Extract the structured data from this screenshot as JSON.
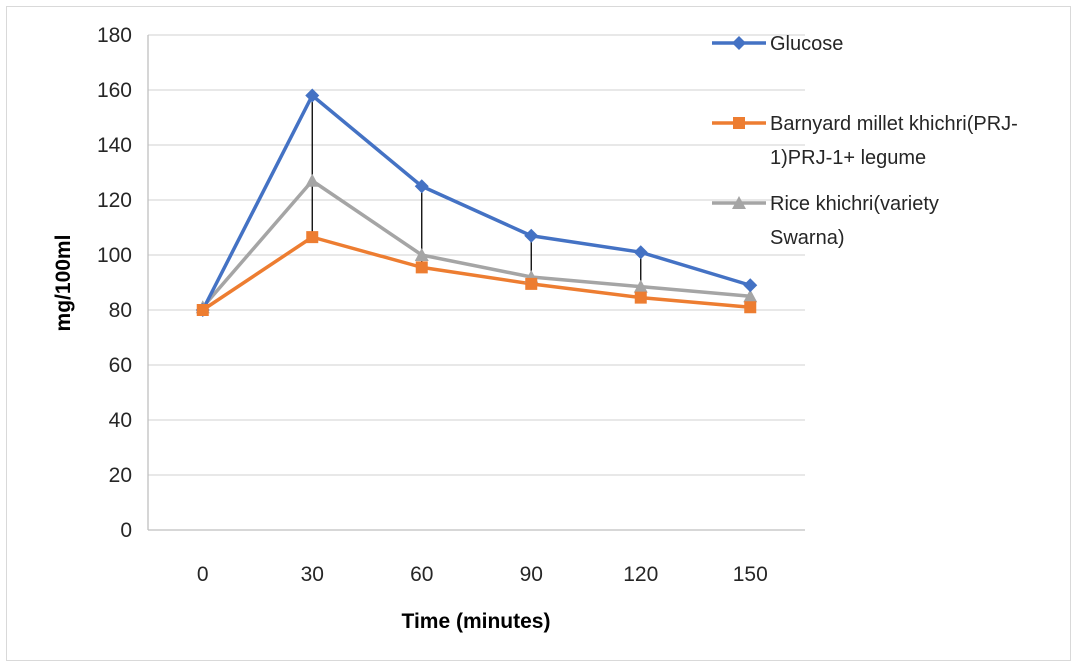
{
  "chart_data": {
    "type": "line",
    "title": "",
    "xlabel": "Time (minutes)",
    "ylabel": "mg/100ml",
    "categories": [
      "0",
      "30",
      "60",
      "90",
      "120",
      "150"
    ],
    "ylim": [
      0,
      180
    ],
    "yticks": [
      "0",
      "20",
      "40",
      "60",
      "80",
      "100",
      "120",
      "140",
      "160",
      "180"
    ],
    "grid": "horizontal",
    "legend_position": "top-right",
    "series": [
      {
        "name": "Glucose",
        "color": "#4472C4",
        "marker": "diamond",
        "values": [
          80,
          158,
          125,
          107,
          101,
          89
        ]
      },
      {
        "name": "Barnyard millet khichri(PRJ-1)PRJ-1+ legume",
        "legend_lines": [
          "Barnyard millet khichri(PRJ-",
          "1)PRJ-1+ legume"
        ],
        "color": "#ED7D31",
        "marker": "square",
        "values": [
          80,
          106.5,
          95.5,
          89.5,
          84.5,
          81
        ]
      },
      {
        "name": "Rice khichri(variety Swarna)",
        "legend_lines": [
          "Rice khichri(variety",
          "Swarna)"
        ],
        "color": "#A5A5A5",
        "marker": "triangle",
        "values": [
          81,
          127,
          100,
          92,
          88.5,
          85
        ]
      }
    ],
    "error_bars": {
      "color": "#000000",
      "pairs": [
        [
          1,
          0,
          1
        ],
        [
          2,
          1,
          0
        ],
        [
          3,
          1,
          0
        ],
        [
          4,
          1,
          0
        ],
        [
          5,
          1,
          0
        ]
      ]
    }
  }
}
